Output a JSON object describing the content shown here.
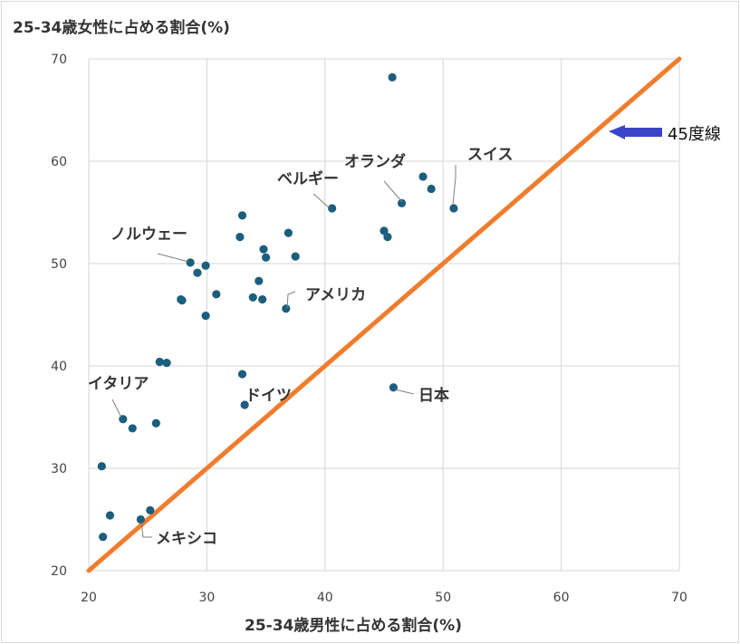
{
  "chart_data": {
    "type": "scatter",
    "title": "25-34歳女性に占める割合(%)",
    "xlabel": "25-34歳男性に占める割合(%)",
    "ylabel": "",
    "xlim": [
      20,
      70
    ],
    "ylim": [
      20,
      70
    ],
    "xticks": [
      "20",
      "30",
      "40",
      "50",
      "60",
      "70"
    ],
    "yticks": [
      "20",
      "30",
      "40",
      "50",
      "60",
      "70"
    ],
    "grid": true,
    "colors": {
      "points": "#1b5e7e",
      "diagonal": "#f07d2d",
      "arrow": "#3a45c9",
      "grid": "#d6d6d6"
    },
    "points": [
      {
        "x": 45.7,
        "y": 68.2
      },
      {
        "x": 48.3,
        "y": 58.5
      },
      {
        "x": 49.0,
        "y": 57.3
      },
      {
        "x": 46.5,
        "y": 55.9
      },
      {
        "x": 50.9,
        "y": 55.4
      },
      {
        "x": 40.6,
        "y": 55.4
      },
      {
        "x": 45.0,
        "y": 53.2
      },
      {
        "x": 45.3,
        "y": 52.6
      },
      {
        "x": 33.0,
        "y": 54.7
      },
      {
        "x": 32.8,
        "y": 52.6
      },
      {
        "x": 36.9,
        "y": 53.0
      },
      {
        "x": 34.8,
        "y": 51.4
      },
      {
        "x": 35.0,
        "y": 50.6
      },
      {
        "x": 37.5,
        "y": 50.7
      },
      {
        "x": 28.6,
        "y": 50.1
      },
      {
        "x": 29.2,
        "y": 49.1
      },
      {
        "x": 29.9,
        "y": 49.8
      },
      {
        "x": 34.4,
        "y": 48.3
      },
      {
        "x": 30.8,
        "y": 47.0
      },
      {
        "x": 27.8,
        "y": 46.5
      },
      {
        "x": 27.9,
        "y": 46.4
      },
      {
        "x": 33.9,
        "y": 46.7
      },
      {
        "x": 34.7,
        "y": 46.5
      },
      {
        "x": 36.7,
        "y": 45.6
      },
      {
        "x": 29.9,
        "y": 44.9
      },
      {
        "x": 26.0,
        "y": 40.4
      },
      {
        "x": 26.6,
        "y": 40.3
      },
      {
        "x": 33.0,
        "y": 39.2
      },
      {
        "x": 33.2,
        "y": 36.2
      },
      {
        "x": 45.8,
        "y": 37.9
      },
      {
        "x": 22.9,
        "y": 34.8
      },
      {
        "x": 23.7,
        "y": 33.9
      },
      {
        "x": 25.7,
        "y": 34.4
      },
      {
        "x": 21.1,
        "y": 30.2
      },
      {
        "x": 21.8,
        "y": 25.4
      },
      {
        "x": 25.2,
        "y": 25.9
      },
      {
        "x": 24.4,
        "y": 25.0
      },
      {
        "x": 21.2,
        "y": 23.3
      }
    ],
    "annotations": [
      {
        "label": "スイス",
        "x": 50.9,
        "y": 55.4
      },
      {
        "label": "オランダ",
        "x": 46.5,
        "y": 55.9
      },
      {
        "label": "ベルギー",
        "x": 40.6,
        "y": 55.4
      },
      {
        "label": "ノルウェー",
        "x": 28.6,
        "y": 50.1
      },
      {
        "label": "アメリカ",
        "x": 36.7,
        "y": 45.6
      },
      {
        "label": "日本",
        "x": 45.8,
        "y": 37.9
      },
      {
        "label": "ドイツ",
        "x": 33.2,
        "y": 36.2
      },
      {
        "label": "イタリア",
        "x": 22.9,
        "y": 34.8
      },
      {
        "label": "メキシコ",
        "x": 24.4,
        "y": 25.0
      }
    ],
    "reference_line": {
      "label": "45度線",
      "from": [
        20,
        20
      ],
      "to": [
        70,
        70
      ]
    }
  }
}
